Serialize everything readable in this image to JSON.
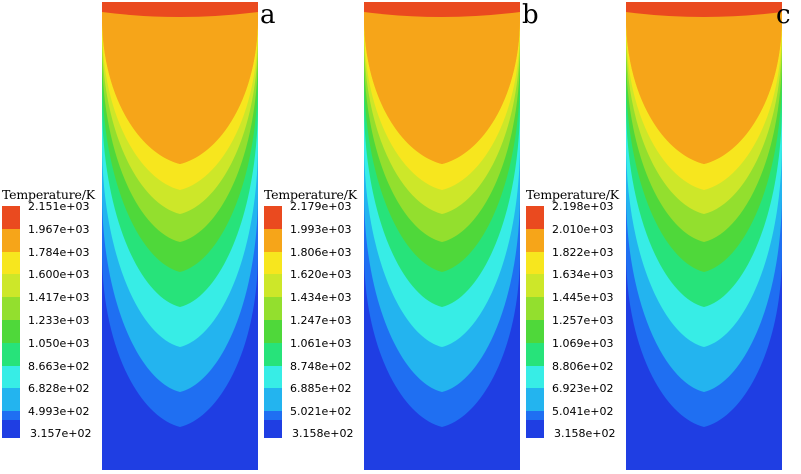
{
  "colors": [
    "#ea4a1f",
    "#f6a519",
    "#f7e61e",
    "#cde729",
    "#93df2e",
    "#4fd83a",
    "#27e37a",
    "#37ede6",
    "#23b4ef",
    "#1f6ff2",
    "#1f3ee3"
  ],
  "panels": [
    {
      "letter": "a",
      "legend_title": "Temperature/K",
      "ticks": [
        "2.151e+03",
        "1.967e+03",
        "1.784e+03",
        "1.600e+03",
        "1.417e+03",
        "1.233e+03",
        "1.050e+03",
        "8.663e+02",
        "6.828e+02",
        "4.993e+02",
        "3.157e+02"
      ]
    },
    {
      "letter": "b",
      "legend_title": "Temperature/K",
      "ticks": [
        "2.179e+03",
        "1.993e+03",
        "1.806e+03",
        "1.620e+03",
        "1.434e+03",
        "1.247e+03",
        "1.061e+03",
        "8.748e+02",
        "6.885e+02",
        "5.021e+02",
        "3.158e+02"
      ]
    },
    {
      "letter": "c",
      "legend_title": "Temperature/K",
      "ticks": [
        "2.198e+03",
        "2.010e+03",
        "1.822e+03",
        "1.634e+03",
        "1.445e+03",
        "1.257e+03",
        "1.069e+03",
        "8.806e+02",
        "6.923e+02",
        "5.041e+02",
        "3.158e+02"
      ]
    }
  ]
}
